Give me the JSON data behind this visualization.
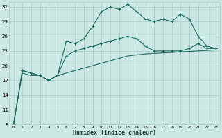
{
  "xlabel": "Humidex (Indice chaleur)",
  "background_color": "#cce8e4",
  "grid_color": "#a8cdc9",
  "line_color": "#1a6b5e",
  "x": [
    0,
    1,
    2,
    3,
    4,
    5,
    6,
    7,
    8,
    9,
    10,
    11,
    12,
    13,
    14,
    15,
    16,
    17,
    18,
    19,
    20,
    21,
    22,
    23
  ],
  "line1_y": [
    8,
    19,
    18.5,
    18,
    17,
    18,
    25,
    24.5,
    25.5,
    28,
    31,
    32,
    31.5,
    32.5,
    31,
    29.5,
    29,
    29.5,
    29,
    30.5,
    29.5,
    26,
    24,
    23.5
  ],
  "line2_y": [
    8,
    19,
    18.5,
    18,
    17,
    18,
    22,
    23,
    23.5,
    24,
    24.5,
    25,
    25.5,
    26,
    25.5,
    24,
    23,
    23,
    23,
    23,
    23.5,
    24.5,
    23.5,
    23.5
  ],
  "line3_y": [
    8,
    18.5,
    18,
    18,
    17,
    18,
    18.5,
    19,
    19.5,
    20,
    20.5,
    21,
    21.5,
    22,
    22.2,
    22.4,
    22.5,
    22.6,
    22.7,
    22.8,
    22.9,
    23,
    23.1,
    23.2
  ],
  "ylim": [
    8,
    33
  ],
  "xlim": [
    -0.5,
    23.5
  ],
  "yticks": [
    8,
    11,
    14,
    17,
    20,
    23,
    26,
    29,
    32
  ],
  "xticks": [
    0,
    1,
    2,
    3,
    4,
    5,
    6,
    7,
    8,
    9,
    10,
    11,
    12,
    13,
    14,
    15,
    16,
    17,
    18,
    19,
    20,
    21,
    22,
    23
  ],
  "marker": "+",
  "markersize": 3.5,
  "linewidth": 0.8
}
